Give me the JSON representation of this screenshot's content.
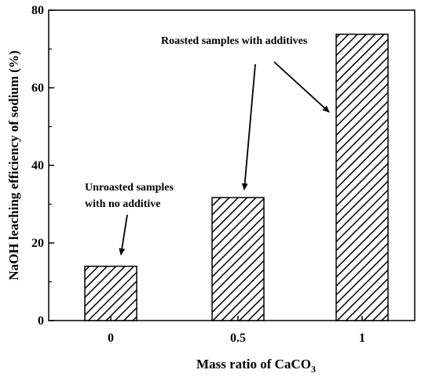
{
  "chart_data": {
    "type": "bar",
    "categories": [
      "0",
      "0.5",
      "1"
    ],
    "values": [
      14,
      31.7,
      73.8
    ],
    "xlabel": "Mass ratio of CaCO",
    "xlabel_sub": "3",
    "ylabel": "NaOH leaching efficiency of sodium (%)",
    "ylim": [
      0,
      80
    ],
    "yticks": [
      "0",
      "20",
      "40",
      "60",
      "80"
    ],
    "grid": false,
    "bar_fill": "diagonal-hatch",
    "annotations": [
      {
        "line1": "Unroasted samples",
        "line2": "with no additive",
        "points_to": [
          "0"
        ]
      },
      {
        "line1": "Roasted samples with additives",
        "line2": "",
        "points_to": [
          "0.5",
          "1"
        ]
      }
    ]
  }
}
